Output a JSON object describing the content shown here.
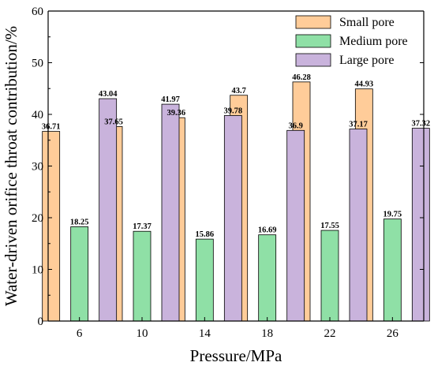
{
  "chart_data": {
    "type": "bar",
    "xlabel": "Pressure/MPa",
    "ylabel": "Water-driven orifice throat contribution/%",
    "categories": [
      "6",
      "10",
      "14",
      "18",
      "22",
      "26"
    ],
    "ylim": [
      0,
      60
    ],
    "yticks": [
      "0",
      "10",
      "20",
      "30",
      "40",
      "50",
      "60"
    ],
    "legend_position": "top-right",
    "grid": false,
    "series": [
      {
        "name": "Small pore",
        "color": "#FFCC99",
        "values": [
          36.71,
          37.65,
          39.36,
          43.7,
          46.28,
          44.93
        ],
        "labels": [
          "36.71",
          "37.65",
          "39.36",
          "43.7",
          "46.28",
          "44.93"
        ]
      },
      {
        "name": "Medium pore",
        "color": "#8FE0A6",
        "values": [
          18.25,
          17.37,
          15.86,
          16.69,
          17.55,
          19.75
        ],
        "labels": [
          "18.25",
          "17.37",
          "15.86",
          "16.69",
          "17.55",
          "19.75"
        ]
      },
      {
        "name": "Large pore",
        "color": "#C9B3DC",
        "values": [
          43.04,
          41.97,
          39.78,
          36.9,
          37.17,
          37.32
        ],
        "labels": [
          "43.04",
          "41.97",
          "39.78",
          "36.9",
          "37.17",
          "37.32"
        ]
      }
    ]
  }
}
